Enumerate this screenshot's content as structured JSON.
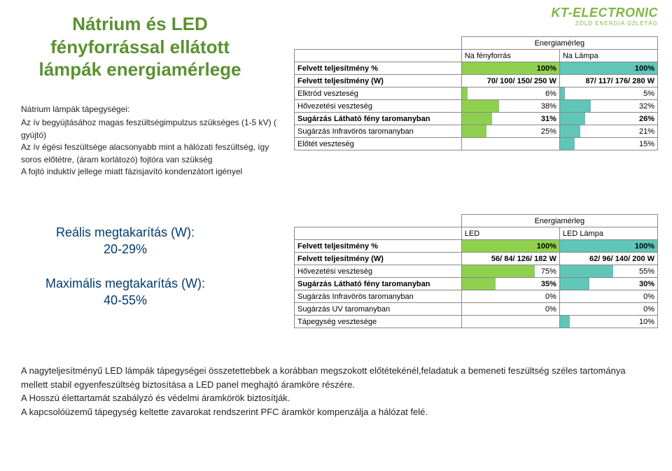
{
  "logo": {
    "main": "KT-ELECTRONIC",
    "sub": "ZÖLD ENERGIA ÜZLETÁG"
  },
  "title": "Nátrium és LED fényforrással ellátott lámpák energiamérlege",
  "intro": {
    "lead": "Nátrium lámpák tápegységei:",
    "lines": [
      "Az ív begyújtásához magas feszültségimpulzus szükséges (1-5 kV)  ( gyújtó)",
      "Az ív égési feszültsége alacsonyabb mint a hálózati feszültség, így soros előtétre, (áram korlátozó) fojtóra van szükség",
      "A fojtó induktív jellege miatt fázisjavító kondenzátort igényel"
    ]
  },
  "savings": {
    "real_label": "Reális megtakarítás (W):",
    "real_value": "20-29%",
    "max_label": "Maximális megtakarítás (W):",
    "max_value": "40-55%"
  },
  "table1": {
    "caption": "Energiamérleg",
    "headers": [
      "",
      "Na fényforrás",
      "Na Lámpa"
    ],
    "rows": [
      {
        "label": "Felvett teljesítmény %",
        "v1": "100%",
        "b1": 100,
        "c1": "green",
        "v2": "100%",
        "b2": 100,
        "c2": "teal",
        "bold": true
      },
      {
        "label": "Felvett teljesítmény (W)",
        "v1": "70/ 100/ 150/ 250 W",
        "b1": 0,
        "c1": "green",
        "v2": "87/ 117/ 176/ 280 W",
        "b2": 0,
        "c2": "teal",
        "bold": true
      },
      {
        "label": "Elktród veszteség",
        "v1": "6%",
        "b1": 6,
        "c1": "green",
        "v2": "5%",
        "b2": 5,
        "c2": "teal",
        "bold": false
      },
      {
        "label": "Hővezetési veszteség",
        "v1": "38%",
        "b1": 38,
        "c1": "green",
        "v2": "32%",
        "b2": 32,
        "c2": "teal",
        "bold": false
      },
      {
        "label": "Sugárzás Látható fény taromanyban",
        "v1": "31%",
        "b1": 31,
        "c1": "green",
        "v2": "26%",
        "b2": 26,
        "c2": "teal",
        "bold": true
      },
      {
        "label": "Sugárzás Infravörös taromanyban",
        "v1": "25%",
        "b1": 25,
        "c1": "green",
        "v2": "21%",
        "b2": 21,
        "c2": "teal",
        "bold": false
      },
      {
        "label": "Előtét veszteség",
        "v1": "",
        "b1": 0,
        "c1": "green",
        "v2": "15%",
        "b2": 15,
        "c2": "teal",
        "bold": false
      }
    ]
  },
  "table2": {
    "caption": "Energiamérleg",
    "headers": [
      "",
      "LED",
      "LED  Lámpa"
    ],
    "rows": [
      {
        "label": "Felvett teljesítmény %",
        "v1": "100%",
        "b1": 100,
        "c1": "green",
        "v2": "100%",
        "b2": 100,
        "c2": "teal",
        "bold": true
      },
      {
        "label": "Felvett teljesítmény (W)",
        "v1": "56/ 84/ 126/ 182 W",
        "b1": 0,
        "c1": "green",
        "v2": "62/ 96/ 140/ 200 W",
        "b2": 0,
        "c2": "teal",
        "bold": true
      },
      {
        "label": "Hővezetési veszteség",
        "v1": "75%",
        "b1": 75,
        "c1": "green",
        "v2": "55%",
        "b2": 55,
        "c2": "teal",
        "bold": false
      },
      {
        "label": "Sugárzás Látható fény taromanyban",
        "v1": "35%",
        "b1": 35,
        "c1": "green",
        "v2": "30%",
        "b2": 30,
        "c2": "teal",
        "bold": true
      },
      {
        "label": "Sugárzás Infravörös taromanyban",
        "v1": "0%",
        "b1": 0,
        "c1": "green",
        "v2": "0%",
        "b2": 0,
        "c2": "teal",
        "bold": false
      },
      {
        "label": "Sugárzás UV taromanyban",
        "v1": "0%",
        "b1": 0,
        "c1": "green",
        "v2": "0%",
        "b2": 0,
        "c2": "teal",
        "bold": false
      },
      {
        "label": "Tápegység vesztesége",
        "v1": "",
        "b1": 0,
        "c1": "green",
        "v2": "10%",
        "b2": 10,
        "c2": "teal",
        "bold": false
      }
    ]
  },
  "bottom": [
    "A nagyteljesítményű LED  lámpák tápegységei összetettebbek a korábban megszokott előtétekénél,feladatuk a bemeneti feszültség széles tartománya mellett stabil egyenfeszültség biztosítása a LED panel meghajtó áramköre részére.",
    "A Hosszú élettartamát szabályzó és védelmi áramkörök biztosítják.",
    "A kapcsolóüzemű tápegység keltette zavarokat rendszerint PFC áramkör kompenzálja a hálózat felé."
  ],
  "colors": {
    "title": "#5b9130",
    "savings": "#003b6f",
    "bar_green": "#8fd14f",
    "bar_teal": "#5fc6b8",
    "border": "#888888"
  }
}
